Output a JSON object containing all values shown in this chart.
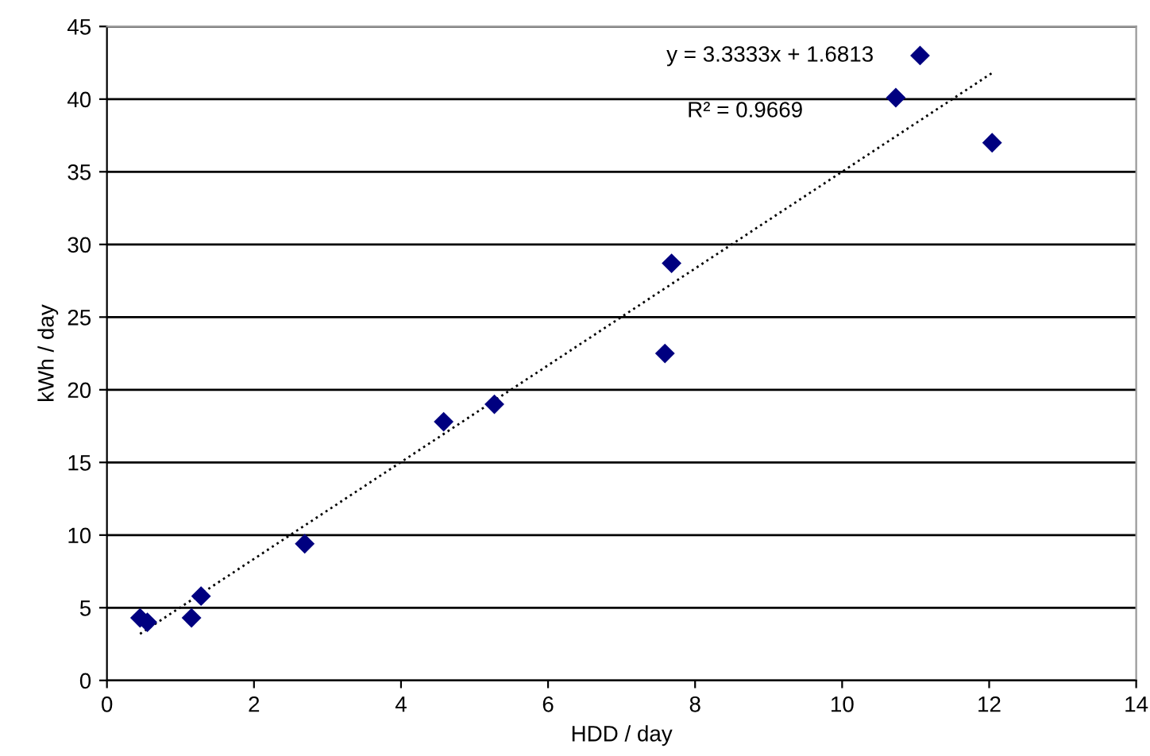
{
  "chart_data": {
    "type": "scatter",
    "xlabel": "HDD / day",
    "ylabel": "kWh / day",
    "xlim": [
      0,
      14
    ],
    "ylim": [
      0,
      45
    ],
    "xticks": [
      0,
      2,
      4,
      6,
      8,
      10,
      12,
      14
    ],
    "yticks": [
      0,
      5,
      10,
      15,
      20,
      25,
      30,
      35,
      40,
      45
    ],
    "grid": "y",
    "series": [
      {
        "color": "#000080",
        "marker": "diamond",
        "x": [
          0.45,
          0.55,
          1.15,
          1.28,
          2.69,
          4.58,
          5.27,
          7.59,
          7.68,
          10.73,
          11.06,
          12.04
        ],
        "values": [
          4.3,
          4.0,
          4.3,
          5.8,
          9.4,
          17.8,
          19.0,
          22.5,
          28.7,
          40.1,
          43.0,
          37.0
        ]
      },
      {
        "type": "line",
        "color": "#000000",
        "line_style": "dotted",
        "x": [
          0.45,
          12.04
        ],
        "values": [
          3.2,
          41.8
        ]
      }
    ],
    "annotations": [
      "y = 3.3333x + 1.6813",
      "R² = 0.9669"
    ]
  }
}
